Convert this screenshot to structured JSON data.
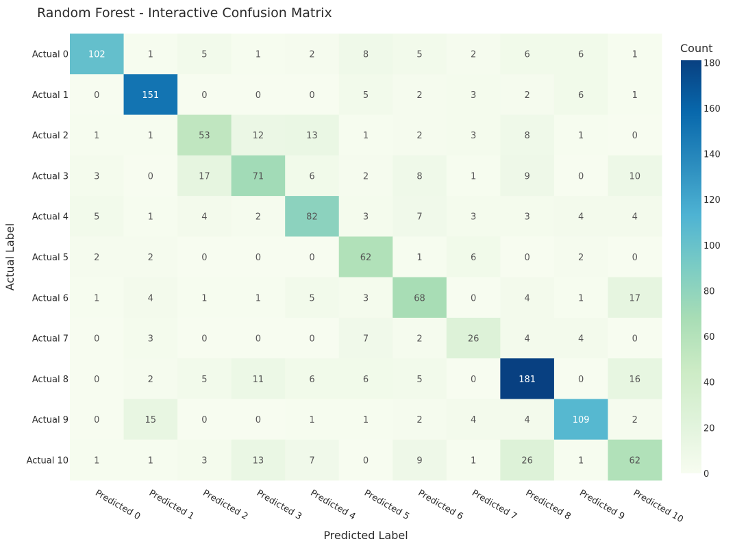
{
  "chart_data": {
    "type": "heatmap",
    "title": "Random Forest - Interactive Confusion Matrix",
    "xlabel": "Predicted Label",
    "ylabel": "Actual Label",
    "x_categories": [
      "Predicted 0",
      "Predicted 1",
      "Predicted 2",
      "Predicted 3",
      "Predicted 4",
      "Predicted 5",
      "Predicted 6",
      "Predicted 7",
      "Predicted 8",
      "Predicted 9",
      "Predicted 10"
    ],
    "y_categories": [
      "Actual 0",
      "Actual 1",
      "Actual 2",
      "Actual 3",
      "Actual 4",
      "Actual 5",
      "Actual 6",
      "Actual 7",
      "Actual 8",
      "Actual 9",
      "Actual 10"
    ],
    "z": [
      [
        102,
        1,
        5,
        1,
        2,
        8,
        5,
        2,
        6,
        6,
        1
      ],
      [
        0,
        151,
        0,
        0,
        0,
        5,
        2,
        3,
        2,
        6,
        1
      ],
      [
        1,
        1,
        53,
        12,
        13,
        1,
        2,
        3,
        8,
        1,
        0
      ],
      [
        3,
        0,
        17,
        71,
        6,
        2,
        8,
        1,
        9,
        0,
        10
      ],
      [
        5,
        1,
        4,
        2,
        82,
        3,
        7,
        3,
        3,
        4,
        4
      ],
      [
        2,
        2,
        0,
        0,
        0,
        62,
        1,
        6,
        0,
        2,
        0
      ],
      [
        1,
        4,
        1,
        1,
        5,
        3,
        68,
        0,
        4,
        1,
        17
      ],
      [
        0,
        3,
        0,
        0,
        0,
        7,
        2,
        26,
        4,
        4,
        0
      ],
      [
        0,
        2,
        5,
        11,
        6,
        6,
        5,
        0,
        181,
        0,
        16
      ],
      [
        0,
        15,
        0,
        0,
        1,
        1,
        2,
        4,
        4,
        109,
        2
      ],
      [
        1,
        1,
        3,
        13,
        7,
        0,
        9,
        1,
        26,
        1,
        62
      ]
    ],
    "colorscale_name": "GnBu",
    "colorbar": {
      "title": "Count",
      "range": [
        0,
        181
      ],
      "ticks": [
        0,
        20,
        40,
        60,
        80,
        100,
        120,
        140,
        160,
        180
      ]
    }
  }
}
